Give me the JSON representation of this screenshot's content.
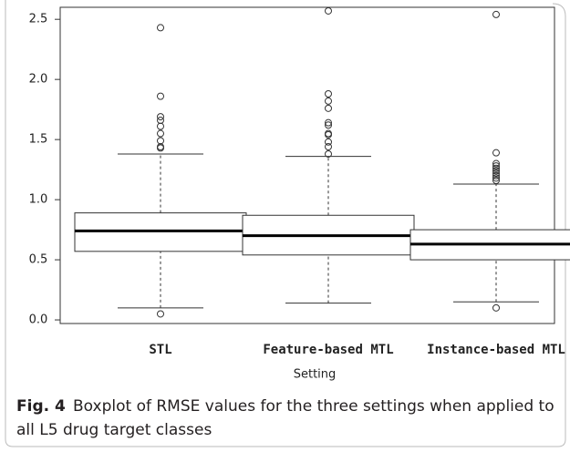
{
  "chart_data": {
    "type": "boxplot",
    "categories": [
      "STL",
      "Feature-based MTL",
      "Instance-based MTL"
    ],
    "boxes": [
      {
        "whislo": 0.1,
        "q1": 0.57,
        "med": 0.74,
        "q3": 0.89,
        "whishi": 1.38,
        "fliers": [
          0.05,
          1.43,
          1.44,
          1.49,
          1.55,
          1.61,
          1.66,
          1.69,
          1.86,
          2.43
        ]
      },
      {
        "whislo": 0.14,
        "q1": 0.54,
        "med": 0.7,
        "q3": 0.87,
        "whishi": 1.36,
        "fliers": [
          1.38,
          1.44,
          1.48,
          1.54,
          1.55,
          1.62,
          1.64,
          1.76,
          1.82,
          1.88,
          2.57
        ]
      },
      {
        "whislo": 0.15,
        "q1": 0.5,
        "med": 0.63,
        "q3": 0.75,
        "whishi": 1.13,
        "fliers": [
          0.1,
          1.16,
          1.18,
          1.2,
          1.22,
          1.24,
          1.26,
          1.28,
          1.3,
          1.39,
          2.54
        ]
      }
    ],
    "color": "#333333",
    "xlabel": "Setting",
    "ylim": [
      -0.03,
      2.6
    ],
    "yticks": [
      {
        "value": 0,
        "label": "0.0"
      },
      0.5,
      {
        "value": 1,
        "label": "1.0"
      },
      1.5,
      {
        "value": 2,
        "label": "2.0"
      },
      2.5
    ],
    "caption_label": "Fig. 4",
    "caption": [
      "Boxplot of RMSE values for the three settings when applied to",
      "all L5 drug target classes"
    ]
  }
}
